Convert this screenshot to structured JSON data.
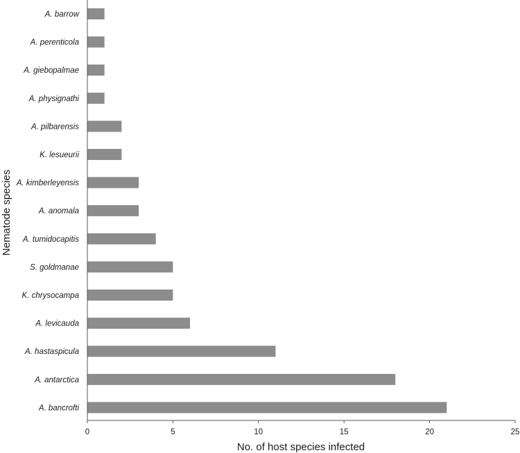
{
  "chart_data": {
    "type": "bar",
    "orientation": "horizontal",
    "xlabel": "No. of host species infected",
    "ylabel": "Nematode species",
    "xlim": [
      0,
      25
    ],
    "xticks": [
      0,
      5,
      10,
      15,
      20,
      25
    ],
    "grid": false,
    "bar_color": "#8c8c8c",
    "categories": [
      "A. barrow",
      "A. perenticola",
      "A. giebopalmae",
      "A. physignathi",
      "A. pilbarensis",
      "K. lesueurii",
      "A. kimberleyensis",
      "A. anomala",
      "A. tumidocapitis",
      "S. goldmanae",
      "K. chrysocampa",
      "A. levicauda",
      "A. hastaspicula",
      "A. antarctica",
      "A. bancrofti"
    ],
    "values": [
      1,
      1,
      1,
      1,
      2,
      2,
      3,
      3,
      4,
      5,
      5,
      6,
      11,
      18,
      21
    ]
  }
}
